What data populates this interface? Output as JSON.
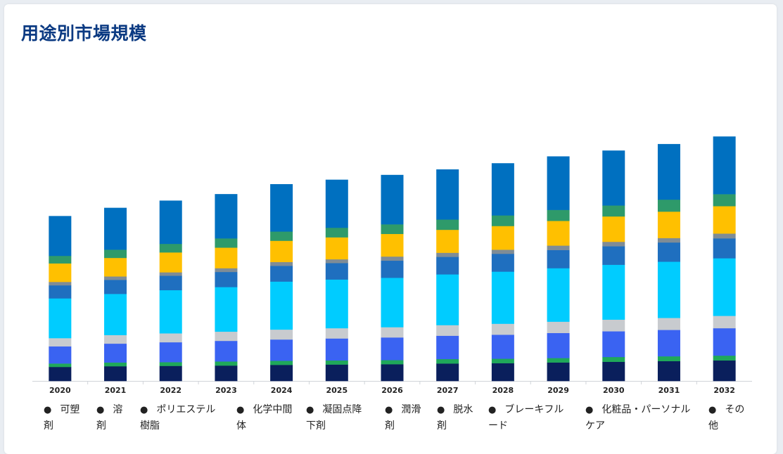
{
  "header": {
    "title": "用途別市場規模"
  },
  "chart_data": {
    "type": "bar",
    "stacked": true,
    "title": "用途別市場規模",
    "categories": [
      "2020",
      "2021",
      "2022",
      "2023",
      "2024",
      "2025",
      "2026",
      "2027",
      "2028",
      "2029",
      "2030",
      "2031",
      "2032"
    ],
    "ylim": [
      0,
      370
    ],
    "grid": false,
    "legend_position": "bottom",
    "series": [
      {
        "name": "可塑剤",
        "color": "#0a1f5c",
        "values": [
          20.5,
          21.5,
          22,
          22.5,
          23.5,
          24,
          24.5,
          25.5,
          26,
          27,
          28,
          29,
          30
        ]
      },
      {
        "name": "溶剤",
        "color": "#1fa85a",
        "values": [
          5,
          5.5,
          5.5,
          6,
          6,
          6,
          6,
          6.5,
          6.5,
          6.5,
          7,
          7,
          7
        ]
      },
      {
        "name": "ポリエステル樹脂",
        "color": "#3a63f2",
        "values": [
          25,
          27.5,
          29,
          30,
          31,
          32,
          33,
          34,
          35,
          36.5,
          37.5,
          38.5,
          40
        ]
      },
      {
        "name": "化学中間体",
        "color": "#c8cbcf",
        "values": [
          12,
          12.5,
          13,
          13.5,
          14.5,
          15,
          15,
          15.5,
          16,
          16.5,
          17,
          17.5,
          18
        ]
      },
      {
        "name": "凝固点降下剤",
        "color": "#00ccff",
        "values": [
          58,
          60,
          63,
          65,
          70,
          71,
          72,
          74,
          76,
          78,
          80,
          82,
          84
        ]
      },
      {
        "name": "潤滑剤",
        "color": "#1f6fbf",
        "values": [
          19,
          20.5,
          21,
          22,
          23,
          24,
          25,
          25.5,
          26,
          26.5,
          27,
          28,
          29
        ]
      },
      {
        "name": "脱水剤",
        "color": "#7f8c96",
        "values": [
          5,
          5,
          5,
          5.5,
          5.5,
          5.5,
          6,
          6,
          6,
          6.5,
          6.5,
          6.5,
          7
        ]
      },
      {
        "name": "ブレーキフルード",
        "color": "#ffc000",
        "values": [
          27,
          27,
          29,
          30,
          31,
          32,
          33,
          33.5,
          34.5,
          36,
          37,
          38.5,
          40
        ]
      },
      {
        "name": "化粧品・パーソナルケア",
        "color": "#2e9a6a",
        "values": [
          11,
          12,
          12.5,
          13.5,
          13.5,
          14,
          14,
          15,
          15.5,
          16,
          16,
          17.5,
          17.5
        ]
      },
      {
        "name": "その他",
        "color": "#0070c0",
        "values": [
          58,
          61,
          63,
          64.5,
          69,
          70,
          72,
          73,
          76,
          78,
          80,
          81,
          84
        ]
      }
    ]
  },
  "legend": {
    "items": [
      {
        "line1": "可塑",
        "line2": "剤"
      },
      {
        "line1": "溶",
        "line2": "剤"
      },
      {
        "line1": "ポリエステル",
        "line2": "樹脂"
      },
      {
        "line1": "化学中間",
        "line2": "体"
      },
      {
        "line1": "凝固点降",
        "line2": "下剤"
      },
      {
        "line1": "潤滑",
        "line2": "剤"
      },
      {
        "line1": "脱水",
        "line2": "剤"
      },
      {
        "line1": "ブレーキフル",
        "line2": "ード"
      },
      {
        "line1": "化粧品・パーソナル",
        "line2": "ケア"
      },
      {
        "line1": "その",
        "line2": "他"
      }
    ]
  }
}
